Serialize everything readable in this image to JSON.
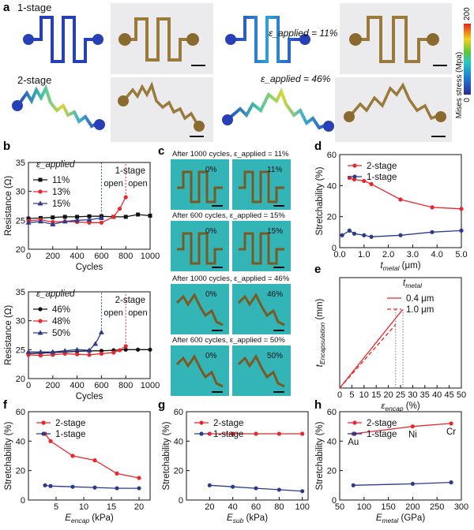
{
  "panels": {
    "a": {
      "label": "a",
      "row1_label": "1-stage",
      "row2_label": "2-stage",
      "strain1": "ε_applied = 11%",
      "strain2": "ε_applied = 46%",
      "colorbar_title": "Mises stress (Mpa)",
      "colorbar_min": "0",
      "colorbar_max": "200"
    },
    "c": {
      "label": "c",
      "captions": [
        "After 1000 cycles, ε_applied = 11%",
        "After 600 cycles, ε_applied = 15%",
        "After 1000 cycles, ε_applied = 46%",
        "After 600 cycles, ε_applied = 50%"
      ],
      "photo_labels": [
        "0%",
        "11%",
        "0%",
        "15%",
        "0%",
        "46%",
        "0%",
        "50%"
      ]
    }
  },
  "colors": {
    "red": "#e8262b",
    "blue": "#2c3a8c",
    "black": "#111111",
    "photo_bg": "#33b5b8"
  },
  "chart_data": [
    {
      "id": "b-top",
      "panel_label": "b",
      "type": "line",
      "xlabel": "Cycles",
      "ylabel": "Resistance (Ω)",
      "xlim": [
        0,
        1000
      ],
      "ylim": [
        20,
        35
      ],
      "xticks": [
        0,
        200,
        400,
        600,
        800,
        1000
      ],
      "yticks": [
        20,
        25,
        30,
        35
      ],
      "legend_title": "ε_applied",
      "stage_label": "1-stage",
      "series": [
        {
          "name": "11%",
          "color": "#111111",
          "marker": "square",
          "x": [
            0,
            100,
            200,
            300,
            400,
            500,
            600,
            700,
            800,
            900,
            1000
          ],
          "y": [
            25.3,
            25.4,
            25.5,
            25.6,
            25.6,
            25.7,
            25.7,
            25.6,
            25.6,
            26.0,
            25.8
          ]
        },
        {
          "name": "13%",
          "color": "#e8262b",
          "marker": "circle",
          "x": [
            0,
            100,
            200,
            300,
            400,
            500,
            600,
            700,
            750,
            800
          ],
          "y": [
            24.9,
            25.1,
            24.7,
            24.8,
            24.7,
            24.6,
            24.6,
            25.6,
            27.0,
            29.0
          ],
          "open_x": 800,
          "open_label": "open"
        },
        {
          "name": "15%",
          "color": "#2c3a8c",
          "marker": "triangle",
          "x": [
            0,
            100,
            200,
            300,
            400,
            500,
            600
          ],
          "y": [
            24.6,
            24.8,
            24.3,
            24.8,
            25.0,
            25.1,
            25.4
          ],
          "open_x": 600,
          "open_label": "open"
        }
      ]
    },
    {
      "id": "b-bottom",
      "type": "line",
      "xlabel": "Cycles",
      "ylabel": "Resistance (Ω)",
      "xlim": [
        0,
        1000
      ],
      "ylim": [
        20,
        35
      ],
      "xticks": [
        0,
        200,
        400,
        600,
        800,
        1000
      ],
      "yticks": [
        20,
        25,
        30,
        35
      ],
      "legend_title": "ε_applied",
      "stage_label": "2-stage",
      "series": [
        {
          "name": "46%",
          "color": "#111111",
          "marker": "circle",
          "x": [
            0,
            100,
            200,
            300,
            400,
            500,
            600,
            700,
            800,
            900,
            1000
          ],
          "y": [
            24.3,
            24.4,
            24.5,
            24.6,
            24.7,
            24.8,
            24.8,
            24.9,
            25.0,
            25.0,
            25.0
          ]
        },
        {
          "name": "48%",
          "color": "#e8262b",
          "marker": "circle",
          "x": [
            0,
            100,
            200,
            300,
            400,
            500,
            600,
            700,
            750,
            800
          ],
          "y": [
            24.1,
            24.0,
            24.1,
            24.3,
            24.2,
            24.1,
            24.3,
            24.5,
            24.9,
            25.6
          ],
          "open_x": 800,
          "open_label": "open"
        },
        {
          "name": "50%",
          "color": "#2c3a8c",
          "marker": "triangle",
          "x": [
            0,
            100,
            200,
            300,
            400,
            500,
            550,
            600
          ],
          "y": [
            24.6,
            24.6,
            24.6,
            24.8,
            25.0,
            24.9,
            26.0,
            28.0
          ],
          "open_x": 600,
          "open_label": "open"
        }
      ]
    },
    {
      "id": "d",
      "panel_label": "d",
      "type": "line",
      "xlabel": "t_metal (μm)",
      "ylabel": "Stretchability (%)",
      "xlim": [
        0,
        5
      ],
      "ylim": [
        0,
        60
      ],
      "xticks": [
        0.0,
        1.0,
        2.0,
        3.0,
        4.0,
        5.0
      ],
      "yticks": [
        0,
        20,
        40,
        60
      ],
      "series": [
        {
          "name": "2-stage",
          "color": "#e8262b",
          "x": [
            0.4,
            0.6,
            1.0,
            1.3,
            2.5,
            3.8,
            5.0
          ],
          "y": [
            45,
            44,
            43,
            41,
            31,
            26,
            25
          ]
        },
        {
          "name": "1-stage",
          "color": "#2c3a8c",
          "x": [
            0.1,
            0.4,
            0.6,
            1.0,
            1.3,
            2.5,
            3.8,
            5.0
          ],
          "y": [
            8,
            11,
            9,
            8,
            7,
            8,
            10,
            11
          ]
        }
      ]
    },
    {
      "id": "e",
      "panel_label": "e",
      "type": "line",
      "xlabel": "ε_encap (%)",
      "ylabel": "t_Encapsulation (mm)",
      "xlim": [
        0,
        50
      ],
      "ylim": [
        0,
        0.4
      ],
      "xticks": [
        0,
        5,
        10,
        15,
        20,
        25,
        30,
        35,
        40,
        45,
        50
      ],
      "yticks": [],
      "legend_title": "t_metal",
      "series": [
        {
          "name": "0.4 μm",
          "color": "#e8262b",
          "dash": false,
          "x": [
            0,
            5,
            10,
            15,
            20,
            25,
            26
          ],
          "y": [
            0,
            0.055,
            0.11,
            0.165,
            0.22,
            0.275,
            0.285
          ]
        },
        {
          "name": "1.0 μm",
          "color": "#e8262b",
          "dash": true,
          "x": [
            0,
            5,
            10,
            15,
            20,
            23
          ],
          "y": [
            0,
            0.05,
            0.1,
            0.15,
            0.2,
            0.23
          ]
        }
      ],
      "vlines": [
        23,
        26
      ]
    },
    {
      "id": "f",
      "panel_label": "f",
      "type": "line",
      "xlabel": "E_encap (kPa)",
      "ylabel": "Stretchability (%)",
      "xlim": [
        0,
        22
      ],
      "ylim": [
        0,
        60
      ],
      "xticks": [
        5,
        10,
        15,
        20
      ],
      "yticks": [
        0,
        20,
        40,
        60
      ],
      "series": [
        {
          "name": "2-stage",
          "color": "#e8262b",
          "x": [
            3,
            4,
            8,
            12,
            16,
            20
          ],
          "y": [
            45,
            40,
            30,
            27,
            18,
            15
          ]
        },
        {
          "name": "1-stage",
          "color": "#2c3a8c",
          "x": [
            3,
            4,
            8,
            12,
            16,
            20
          ],
          "y": [
            10,
            9.5,
            9,
            8.5,
            8,
            8
          ]
        }
      ]
    },
    {
      "id": "g",
      "panel_label": "g",
      "type": "line",
      "xlabel": "E_sub (kPa)",
      "ylabel": "Stretchability (%)",
      "xlim": [
        0,
        105
      ],
      "ylim": [
        0,
        60
      ],
      "xticks": [
        20,
        40,
        60,
        80,
        100
      ],
      "yticks": [
        0,
        20,
        40,
        60
      ],
      "series": [
        {
          "name": "2-stage",
          "color": "#e8262b",
          "x": [
            20,
            40,
            60,
            80,
            100
          ],
          "y": [
            45,
            45,
            45,
            45,
            45
          ]
        },
        {
          "name": "1-stage",
          "color": "#2c3a8c",
          "x": [
            20,
            40,
            60,
            80,
            100
          ],
          "y": [
            10,
            9,
            8,
            7,
            6
          ]
        }
      ]
    },
    {
      "id": "h",
      "panel_label": "h",
      "type": "line",
      "xlabel": "E_metal (GPa)",
      "ylabel": "Stretchability (%)",
      "xlim": [
        50,
        300
      ],
      "ylim": [
        0,
        60
      ],
      "xticks": [
        50,
        100,
        150,
        200,
        250,
        300
      ],
      "yticks": [
        0,
        20,
        40,
        60
      ],
      "series": [
        {
          "name": "2-stage",
          "color": "#e8262b",
          "x": [
            78,
            200,
            279
          ],
          "y": [
            45,
            50,
            52
          ]
        },
        {
          "name": "1-stage",
          "color": "#2c3a8c",
          "x": [
            78,
            200,
            279
          ],
          "y": [
            10,
            11,
            12
          ]
        }
      ],
      "point_labels": [
        {
          "text": "Au",
          "x": 78,
          "y": 45
        },
        {
          "text": "Ni",
          "x": 200,
          "y": 50
        },
        {
          "text": "Cr",
          "x": 279,
          "y": 52
        }
      ]
    }
  ]
}
